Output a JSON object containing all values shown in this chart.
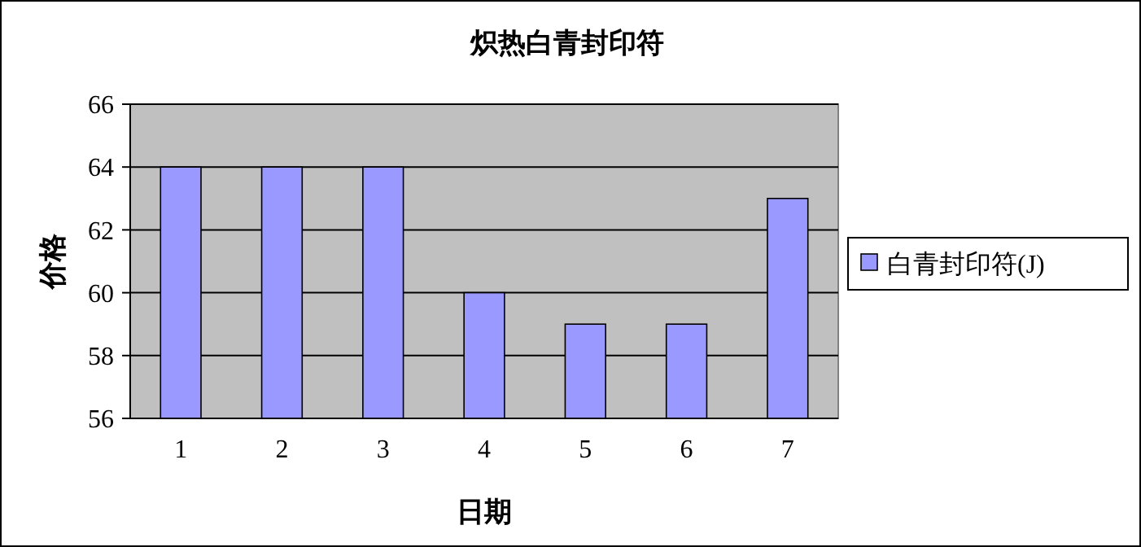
{
  "chart_data": {
    "type": "bar",
    "title": "炽热白青封印符",
    "xlabel": "日期",
    "ylabel": "价格",
    "categories": [
      "1",
      "2",
      "3",
      "4",
      "5",
      "6",
      "7"
    ],
    "series": [
      {
        "name": "白青封印符(J)",
        "color": "#9999ff",
        "values": [
          64,
          64,
          64,
          60,
          59,
          59,
          63
        ]
      }
    ],
    "ylim": [
      56,
      66
    ],
    "yticks": [
      56,
      58,
      60,
      62,
      64,
      66
    ],
    "grid": "y",
    "legend": "right"
  }
}
